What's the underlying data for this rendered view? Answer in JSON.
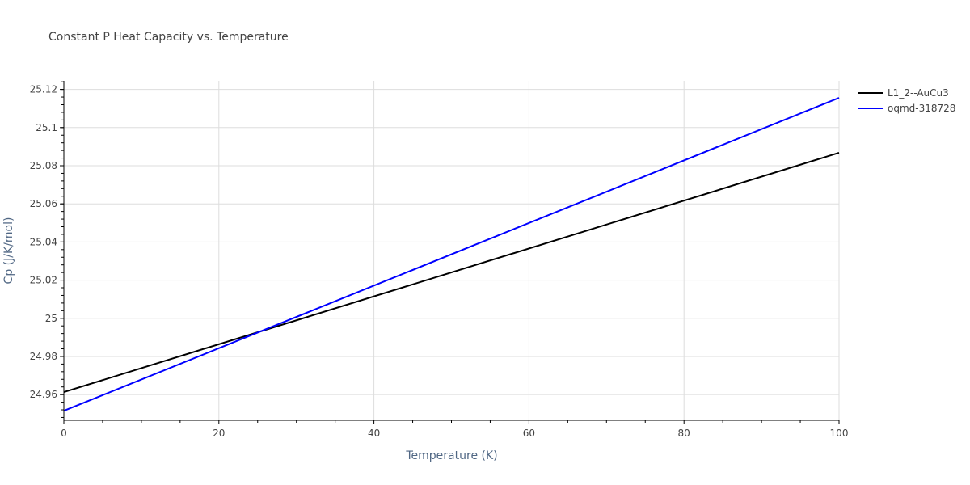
{
  "chart_data": {
    "type": "line",
    "title": "Constant P Heat Capacity vs. Temperature",
    "xlabel": "Temperature (K)",
    "ylabel": "Cp (J/K/mol)",
    "xlim": [
      0,
      100
    ],
    "ylim": [
      24.9465,
      25.1245
    ],
    "x_ticks": [
      0,
      20,
      40,
      60,
      80,
      100
    ],
    "y_ticks": [
      24.96,
      24.98,
      25,
      25.02,
      25.04,
      25.06,
      25.08,
      25.1,
      25.12
    ],
    "x_tick_labels": [
      "0",
      "20",
      "40",
      "60",
      "80",
      "100"
    ],
    "y_tick_labels": [
      "24.96",
      "24.98",
      "25",
      "25.02",
      "25.04",
      "25.06",
      "25.08",
      "25.1",
      "25.12"
    ],
    "grid": true,
    "legend_position": "top-right",
    "series": [
      {
        "name": "L1_2--AuCu3",
        "color": "#000000",
        "x": [
          0,
          100
        ],
        "y": [
          24.9613,
          25.0868
        ]
      },
      {
        "name": "oqmd-318728",
        "color": "#0000ff",
        "x": [
          0,
          100
        ],
        "y": [
          24.9515,
          25.1156
        ]
      }
    ]
  }
}
